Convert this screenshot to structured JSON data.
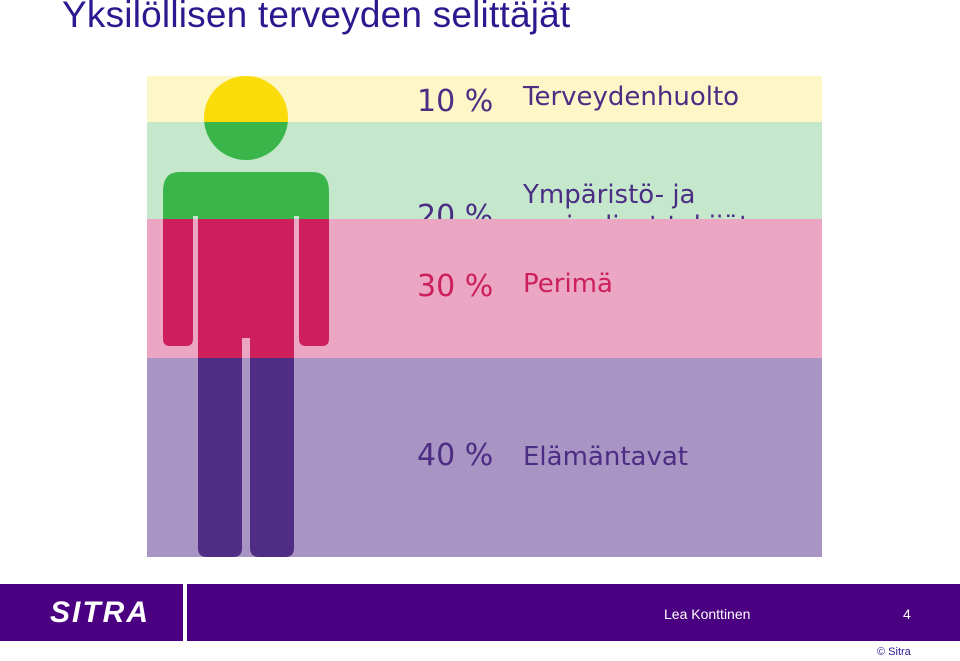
{
  "title": "Yksilöllisen terveyden selittäjät",
  "bands": [
    {
      "percent": "10 %",
      "label_lines": [
        "Terveydenhuolto"
      ],
      "share": 0.1,
      "bg": "#fdf6c6",
      "person_color": "#f9dc0a",
      "text_color": "#4b2d84"
    },
    {
      "percent": "20 %",
      "label_lines": [
        "Ympäristö- ja",
        "sosiaaliset tekijät"
      ],
      "share": 0.2,
      "bg": "#c5e8cc",
      "person_color": "#39b54a",
      "text_color": "#4b2d84"
    },
    {
      "percent": "30 %",
      "label_lines": [
        "Perimä"
      ],
      "share": 0.3,
      "bg": "#eaa6c2",
      "person_color": "#cc1f5c",
      "text_color": "#cc1f5c"
    },
    {
      "percent": "40 %",
      "label_lines": [
        "Elämäntavat"
      ],
      "share": 0.4,
      "bg": "#a895c3",
      "person_color": "#4f2d84",
      "text_color": "#4b2d84"
    }
  ],
  "footer": {
    "logo": "SITRA",
    "author": "Lea Konttinen",
    "page_number": "4",
    "copyright": "© Sitra"
  },
  "colors": {
    "footer_bg": "#4b0082",
    "title": "#2b1a8f"
  }
}
